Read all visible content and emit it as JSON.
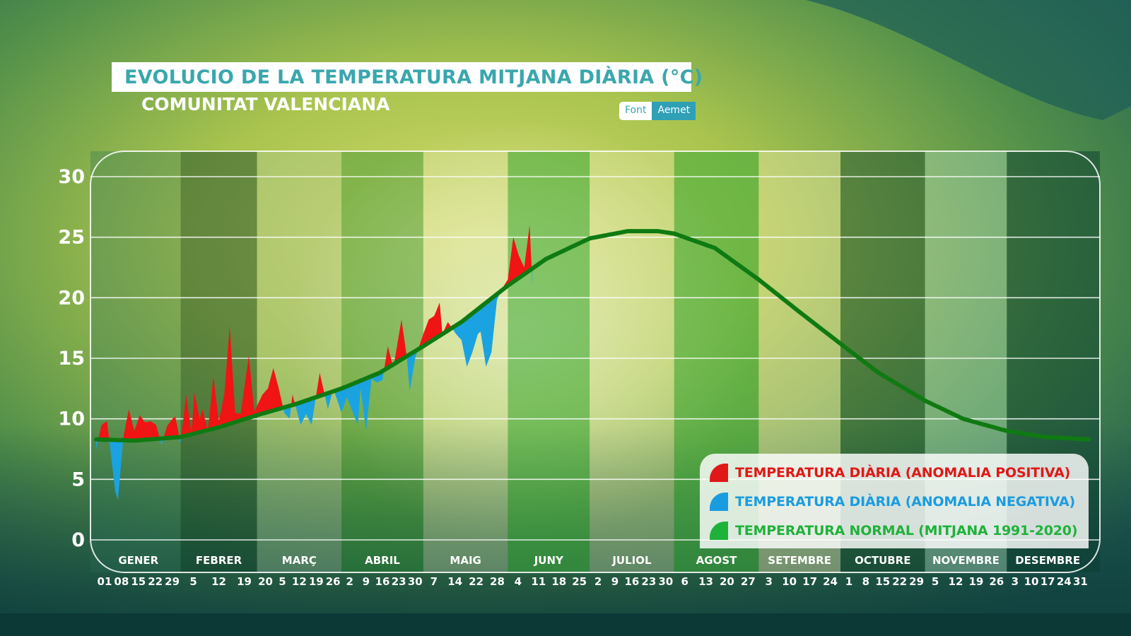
{
  "title": "EVOLUCIO DE LA TEMPERATURA MITJANA DIÀRIA (°C)",
  "subtitle": "COMUNITAT VALENCIANA",
  "source": {
    "label": "Font",
    "value": "Aemet"
  },
  "colors": {
    "positive": "#f01414",
    "negative": "#1aa3e0",
    "normal": "#0f7a12",
    "title": "#3aa7ad"
  },
  "legend": [
    {
      "label": "TEMPERATURA DIÀRIA (ANOMALIA POSITIVA)",
      "color": "#e01818"
    },
    {
      "label": "TEMPERATURA DIÀRIA (ANOMALIA NEGATIVA)",
      "color": "#1a9ce0"
    },
    {
      "label": "TEMPERATURA NORMAL (MITJANA 1991-2020)",
      "color": "#1fb23a"
    }
  ],
  "chart_data": {
    "type": "area",
    "title": "EVOLUCIO DE LA TEMPERATURA MITJANA DIÀRIA (°C)",
    "ylim": [
      0,
      30
    ],
    "yticks": [
      0,
      5,
      10,
      15,
      20,
      25,
      30
    ],
    "grid": true,
    "legend_position": "bottom-right",
    "months": [
      {
        "name": "GENER",
        "days": 31,
        "ticks": [
          "01",
          "08",
          "15",
          "22",
          "29"
        ]
      },
      {
        "name": "FEBRER",
        "days": 28,
        "ticks": [
          "5",
          "12",
          "19"
        ]
      },
      {
        "name": "MARÇ",
        "days": 31,
        "ticks": [
          "20",
          "5",
          "12",
          "19",
          "26"
        ]
      },
      {
        "name": "ABRIL",
        "days": 30,
        "ticks": [
          "2",
          "9",
          "16",
          "23",
          "30"
        ]
      },
      {
        "name": "MAIG",
        "days": 31,
        "ticks": [
          "7",
          "14",
          "22",
          "28"
        ]
      },
      {
        "name": "JUNY",
        "days": 30,
        "ticks": [
          "4",
          "11",
          "18",
          "25"
        ]
      },
      {
        "name": "JULIOL",
        "days": 31,
        "ticks": [
          "2",
          "9",
          "16",
          "23",
          "30"
        ]
      },
      {
        "name": "AGOST",
        "days": 31,
        "ticks": [
          "6",
          "13",
          "20",
          "27"
        ]
      },
      {
        "name": "SETEMBRE",
        "days": 30,
        "ticks": [
          "3",
          "10",
          "17",
          "24"
        ]
      },
      {
        "name": "OCTUBRE",
        "days": 31,
        "ticks": [
          "1",
          "8",
          "15",
          "22",
          "29"
        ]
      },
      {
        "name": "NOVEMBRE",
        "days": 30,
        "ticks": [
          "5",
          "12",
          "19",
          "26"
        ]
      },
      {
        "name": "DESEMBRE",
        "days": 31,
        "ticks": [
          "3",
          "10",
          "17",
          "24",
          "31"
        ]
      }
    ],
    "series": [
      {
        "name": "TEMPERATURA NORMAL (MITJANA 1991-2020)",
        "points": [
          [
            1,
            8.3
          ],
          [
            15,
            8.2
          ],
          [
            32,
            8.5
          ],
          [
            46,
            9.3
          ],
          [
            60,
            10.3
          ],
          [
            74,
            11.2
          ],
          [
            91,
            12.5
          ],
          [
            105,
            13.8
          ],
          [
            121,
            16.0
          ],
          [
            135,
            18.0
          ],
          [
            152,
            21.0
          ],
          [
            166,
            23.2
          ],
          [
            182,
            24.9
          ],
          [
            196,
            25.5
          ],
          [
            207,
            25.5
          ],
          [
            213,
            25.3
          ],
          [
            228,
            24.1
          ],
          [
            244,
            21.5
          ],
          [
            258,
            19.0
          ],
          [
            274,
            16.2
          ],
          [
            288,
            13.8
          ],
          [
            305,
            11.5
          ],
          [
            319,
            10.0
          ],
          [
            335,
            9.0
          ],
          [
            349,
            8.5
          ],
          [
            365,
            8.3
          ]
        ]
      },
      {
        "name": "TEMPERATURA DIÀRIA",
        "points": [
          [
            1,
            7.5
          ],
          [
            3,
            9.5
          ],
          [
            5,
            9.8
          ],
          [
            8,
            4.0
          ],
          [
            9,
            3.3
          ],
          [
            11,
            8.5
          ],
          [
            13,
            10.8
          ],
          [
            15,
            9.0
          ],
          [
            17,
            10.3
          ],
          [
            19,
            9.7
          ],
          [
            21,
            9.8
          ],
          [
            23,
            9.5
          ],
          [
            25,
            7.8
          ],
          [
            27,
            9.4
          ],
          [
            29,
            10.0
          ],
          [
            30,
            10.2
          ],
          [
            32,
            8.0
          ],
          [
            34,
            12.0
          ],
          [
            36,
            8.8
          ],
          [
            37,
            12.2
          ],
          [
            39,
            10.0
          ],
          [
            40,
            10.8
          ],
          [
            42,
            9.0
          ],
          [
            44,
            13.5
          ],
          [
            46,
            9.8
          ],
          [
            48,
            12.0
          ],
          [
            50,
            17.6
          ],
          [
            52,
            10.5
          ],
          [
            54,
            10.4
          ],
          [
            57,
            15.2
          ],
          [
            59,
            10.6
          ],
          [
            62,
            12.0
          ],
          [
            64,
            12.5
          ],
          [
            66,
            14.2
          ],
          [
            68,
            12.5
          ],
          [
            70,
            10.5
          ],
          [
            72,
            10.0
          ],
          [
            73,
            12.0
          ],
          [
            76,
            9.5
          ],
          [
            78,
            10.4
          ],
          [
            80,
            9.5
          ],
          [
            83,
            13.8
          ],
          [
            86,
            10.8
          ],
          [
            88,
            12.5
          ],
          [
            91,
            10.5
          ],
          [
            93,
            11.8
          ],
          [
            95,
            10.6
          ],
          [
            97,
            9.5
          ],
          [
            98,
            12.5
          ],
          [
            100,
            9.0
          ],
          [
            102,
            13.3
          ],
          [
            104,
            13.0
          ],
          [
            106,
            13.2
          ],
          [
            108,
            16.0
          ],
          [
            110,
            14.2
          ],
          [
            113,
            18.2
          ],
          [
            115,
            15.0
          ],
          [
            116,
            12.3
          ],
          [
            118,
            15.0
          ],
          [
            121,
            17.0
          ],
          [
            123,
            18.2
          ],
          [
            125,
            18.5
          ],
          [
            127,
            19.6
          ],
          [
            128,
            17.0
          ],
          [
            130,
            18.0
          ],
          [
            133,
            17.0
          ],
          [
            135,
            16.5
          ],
          [
            137,
            14.3
          ],
          [
            139,
            15.5
          ],
          [
            141,
            17.0
          ],
          [
            142,
            17.2
          ],
          [
            144,
            14.3
          ],
          [
            146,
            15.5
          ],
          [
            148,
            19.8
          ],
          [
            150,
            20.8
          ],
          [
            152,
            21.5
          ],
          [
            154,
            25.0
          ],
          [
            156,
            23.5
          ],
          [
            158,
            22.5
          ],
          [
            160,
            26.0
          ],
          [
            161,
            21.0
          ]
        ]
      }
    ]
  }
}
